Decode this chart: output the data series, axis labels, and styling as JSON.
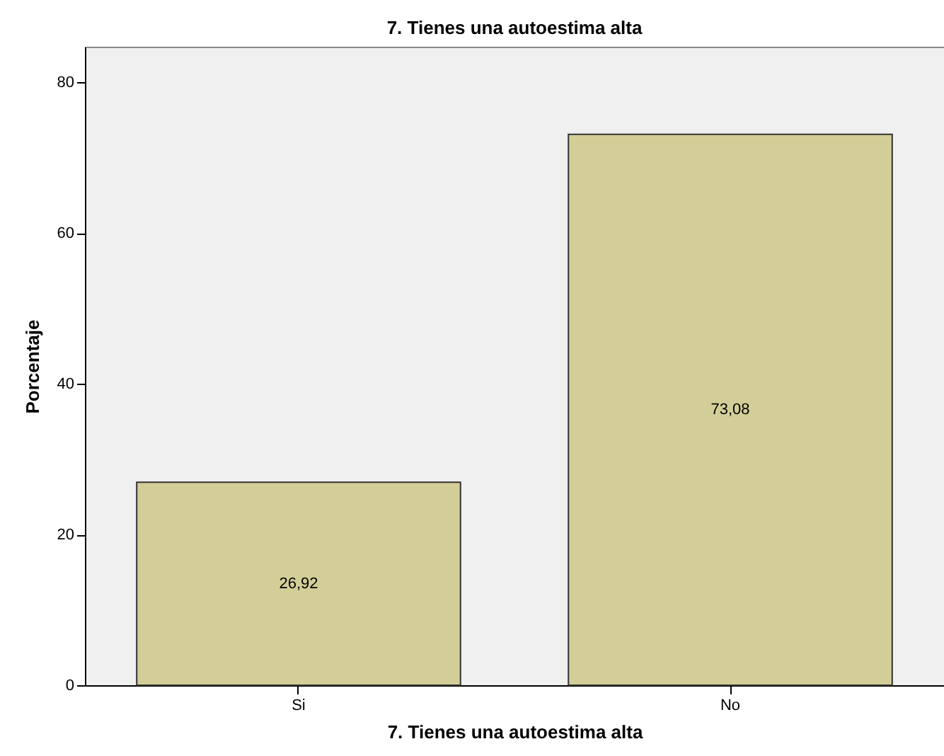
{
  "chart_data": {
    "type": "bar",
    "title": "7. Tienes una autoestima alta",
    "xlabel": "7. Tienes una autoestima alta",
    "ylabel": "Porcentaje",
    "categories": [
      "Si",
      "No"
    ],
    "values": [
      26.92,
      73.08
    ],
    "value_labels": [
      "26,92",
      "73,08"
    ],
    "color": "#d3ce97",
    "ylim": [
      0,
      84.7
    ],
    "yticks": [
      0,
      20,
      40,
      60,
      80
    ],
    "grid": false
  }
}
